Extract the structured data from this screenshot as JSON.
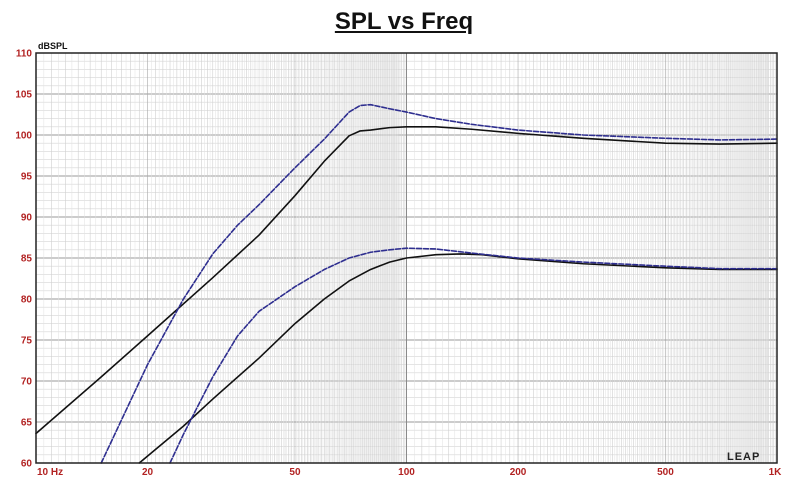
{
  "chart_data": {
    "type": "line",
    "title": "SPL vs Freq",
    "ylabel": "dBSPL",
    "xlabel": "",
    "x_scale": "log",
    "xlim": [
      10,
      1000
    ],
    "ylim": [
      60,
      110
    ],
    "x_ticks": [
      {
        "value": 10,
        "label": "10  Hz"
      },
      {
        "value": 20,
        "label": "20"
      },
      {
        "value": 50,
        "label": "50"
      },
      {
        "value": 100,
        "label": "100"
      },
      {
        "value": 200,
        "label": "200"
      },
      {
        "value": 500,
        "label": "500"
      },
      {
        "value": 1000,
        "label": "1K"
      }
    ],
    "y_ticks": [
      60,
      65,
      70,
      75,
      80,
      85,
      90,
      95,
      100,
      105,
      110
    ],
    "grid": true,
    "logo_text": "LEAP",
    "series": [
      {
        "color": "#111111",
        "style": "solid",
        "x": [
          10,
          15,
          20,
          30,
          40,
          50,
          60,
          70,
          75,
          80,
          90,
          100,
          120,
          150,
          200,
          300,
          500,
          700,
          1000
        ],
        "y": [
          63.6,
          70.5,
          75.5,
          82.6,
          87.8,
          92.6,
          96.8,
          99.9,
          100.5,
          100.6,
          100.9,
          101.0,
          101.0,
          100.7,
          100.2,
          99.6,
          99.0,
          98.9,
          99.0
        ]
      },
      {
        "color": "#2e2e8f",
        "style": "dashed",
        "x": [
          15,
          20,
          25,
          30,
          35,
          40,
          50,
          60,
          70,
          75,
          80,
          90,
          100,
          120,
          150,
          200,
          300,
          500,
          700,
          1000
        ],
        "y": [
          60,
          72.0,
          80.0,
          85.5,
          89.0,
          91.5,
          96.0,
          99.5,
          102.8,
          103.6,
          103.7,
          103.2,
          102.8,
          102.0,
          101.3,
          100.6,
          100.0,
          99.6,
          99.4,
          99.5
        ]
      },
      {
        "color": "#111111",
        "style": "solid",
        "x": [
          19,
          25,
          30,
          40,
          50,
          60,
          70,
          80,
          90,
          100,
          120,
          140,
          160,
          200,
          300,
          500,
          700,
          1000
        ],
        "y": [
          60,
          64.5,
          67.8,
          72.8,
          77.0,
          80.0,
          82.2,
          83.6,
          84.5,
          85.0,
          85.4,
          85.5,
          85.4,
          84.9,
          84.3,
          83.8,
          83.6,
          83.6
        ]
      },
      {
        "color": "#2e2e8f",
        "style": "dashed",
        "x": [
          23,
          25,
          30,
          35,
          40,
          50,
          60,
          70,
          80,
          90,
          100,
          120,
          150,
          200,
          300,
          500,
          700,
          1000
        ],
        "y": [
          60,
          63.5,
          70.5,
          75.5,
          78.5,
          81.5,
          83.6,
          85.0,
          85.7,
          86.0,
          86.2,
          86.1,
          85.6,
          85.0,
          84.5,
          84.0,
          83.7,
          83.7
        ]
      }
    ]
  }
}
